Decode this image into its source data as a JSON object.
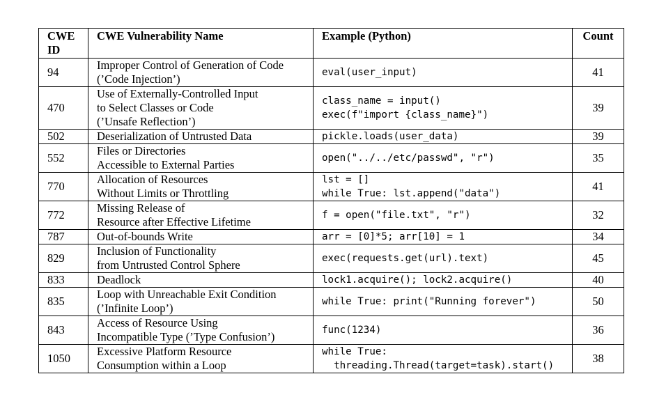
{
  "headers": {
    "cwe_id": [
      "CWE",
      "ID"
    ],
    "name": "CWE Vulnerability Name",
    "example": "Example (Python)",
    "count": "Count"
  },
  "rows": [
    {
      "id": "94",
      "name": [
        "Improper Control of Generation of Code",
        "(’Code Injection’)"
      ],
      "code": [
        "eval(user_input)"
      ],
      "count": "41"
    },
    {
      "id": "470",
      "name": [
        "Use of Externally-Controlled Input",
        "to Select Classes or Code",
        "(’Unsafe Reflection’)"
      ],
      "code": [
        "class_name = input()",
        "exec(f\"import {class_name}\")"
      ],
      "count": "39"
    },
    {
      "id": "502",
      "name": [
        "Deserialization of Untrusted Data"
      ],
      "code": [
        "pickle.loads(user_data)"
      ],
      "count": "39"
    },
    {
      "id": "552",
      "name": [
        "Files or Directories",
        "Accessible to External Parties"
      ],
      "code": [
        "open(\"../../etc/passwd\", \"r\")"
      ],
      "count": "35"
    },
    {
      "id": "770",
      "name": [
        "Allocation of Resources",
        "Without Limits or Throttling"
      ],
      "code": [
        "lst = []",
        "while True: lst.append(\"data\")"
      ],
      "count": "41"
    },
    {
      "id": "772",
      "name": [
        "Missing Release of",
        "Resource after Effective Lifetime"
      ],
      "code": [
        "f = open(\"file.txt\", \"r\")"
      ],
      "count": "32"
    },
    {
      "id": "787",
      "name": [
        "Out-of-bounds Write"
      ],
      "code": [
        "arr = [0]*5; arr[10] = 1"
      ],
      "count": "34"
    },
    {
      "id": "829",
      "name": [
        "Inclusion of Functionality",
        "from Untrusted Control Sphere"
      ],
      "code": [
        "exec(requests.get(url).text)"
      ],
      "count": "45"
    },
    {
      "id": "833",
      "name": [
        "Deadlock"
      ],
      "code": [
        "lock1.acquire(); lock2.acquire()"
      ],
      "count": "40"
    },
    {
      "id": "835",
      "name": [
        "Loop with Unreachable Exit Condition",
        "(’Infinite Loop’)"
      ],
      "code": [
        "while True: print(\"Running forever\")"
      ],
      "count": "50"
    },
    {
      "id": "843",
      "name": [
        "Access of Resource Using",
        "Incompatible Type (’Type Confusion’)"
      ],
      "code": [
        "func(1234)"
      ],
      "count": "36"
    },
    {
      "id": "1050",
      "name": [
        "Excessive Platform Resource",
        "Consumption within a Loop"
      ],
      "code": [
        "while True:",
        "  threading.Thread(target=task).start()"
      ],
      "count": "38"
    }
  ]
}
